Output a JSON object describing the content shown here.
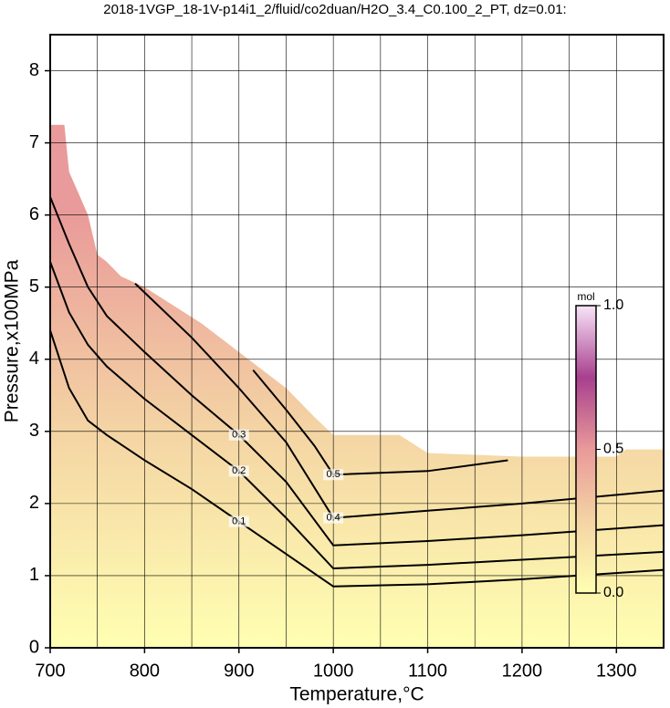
{
  "chart_data": {
    "type": "contour",
    "title": "2018-1VGP_18-1V-p14i1_2/fluid/co2duan/H2O_3.4_C0.100_2_PT, dz=0.01:",
    "xlabel": "Temperature,°C",
    "ylabel": "Pressure,x100MPa",
    "xlim": [
      700,
      1350
    ],
    "ylim": [
      0,
      8.5
    ],
    "xticks": [
      700,
      800,
      900,
      1000,
      1100,
      1200,
      1300
    ],
    "yticks": [
      0,
      1,
      2,
      3,
      4,
      5,
      6,
      7,
      8
    ],
    "xgrid": [
      700,
      750,
      800,
      850,
      900,
      950,
      1000,
      1050,
      1100,
      1150,
      1200,
      1250,
      1300,
      1350
    ],
    "grid": true,
    "colormap": [
      "#ffffb2",
      "#f4d4a4",
      "#e99a9a",
      "#a8408e",
      "#f8e4f8"
    ],
    "region": {
      "x": [
        700,
        700,
        715,
        720,
        740,
        750,
        760,
        775,
        800,
        830,
        860,
        900,
        950,
        980,
        1000,
        1070,
        1100,
        1200,
        1300,
        1310,
        1350,
        1350
      ],
      "y": [
        0,
        7.25,
        7.25,
        6.6,
        6.0,
        5.45,
        5.35,
        5.15,
        5.0,
        4.75,
        4.5,
        4.1,
        3.6,
        3.2,
        2.95,
        2.95,
        2.7,
        2.65,
        2.65,
        2.75,
        2.75,
        0
      ]
    },
    "series": [
      {
        "name": "0.1",
        "color": "#000000",
        "x": [
          700,
          720,
          740,
          760,
          800,
          850,
          900,
          950,
          1000,
          1100,
          1200,
          1350
        ],
        "values": [
          4.4,
          3.6,
          3.15,
          2.95,
          2.6,
          2.2,
          1.75,
          1.3,
          0.85,
          0.88,
          0.95,
          1.08
        ]
      },
      {
        "name": "0.2",
        "color": "#000000",
        "x": [
          700,
          720,
          740,
          760,
          800,
          850,
          900,
          950,
          1000,
          1100,
          1200,
          1350
        ],
        "values": [
          5.35,
          4.65,
          4.2,
          3.9,
          3.45,
          2.95,
          2.45,
          1.8,
          1.1,
          1.15,
          1.22,
          1.33
        ]
      },
      {
        "name": "0.3",
        "color": "#000000",
        "x": [
          700,
          720,
          740,
          760,
          800,
          850,
          900,
          950,
          1000,
          1100,
          1200,
          1350
        ],
        "values": [
          6.25,
          5.6,
          5.0,
          4.6,
          4.1,
          3.5,
          2.95,
          2.3,
          1.42,
          1.48,
          1.56,
          1.7
        ]
      },
      {
        "name": "0.4",
        "color": "#000000",
        "x": [
          790,
          850,
          900,
          950,
          1000,
          1100,
          1200,
          1350
        ],
        "values": [
          5.05,
          4.3,
          3.6,
          2.85,
          1.8,
          1.9,
          2.0,
          2.18
        ]
      },
      {
        "name": "0.5",
        "color": "#000000",
        "x": [
          915,
          950,
          980,
          1000,
          1100,
          1185
        ],
        "values": [
          3.85,
          3.3,
          2.8,
          2.4,
          2.45,
          2.6
        ]
      }
    ],
    "colorbar": {
      "label": "mol",
      "lim": [
        0,
        1
      ],
      "ticks": [
        {
          "value": 0,
          "label": "0.0"
        },
        0.5,
        {
          "value": 1,
          "label": "1.0"
        }
      ]
    }
  }
}
